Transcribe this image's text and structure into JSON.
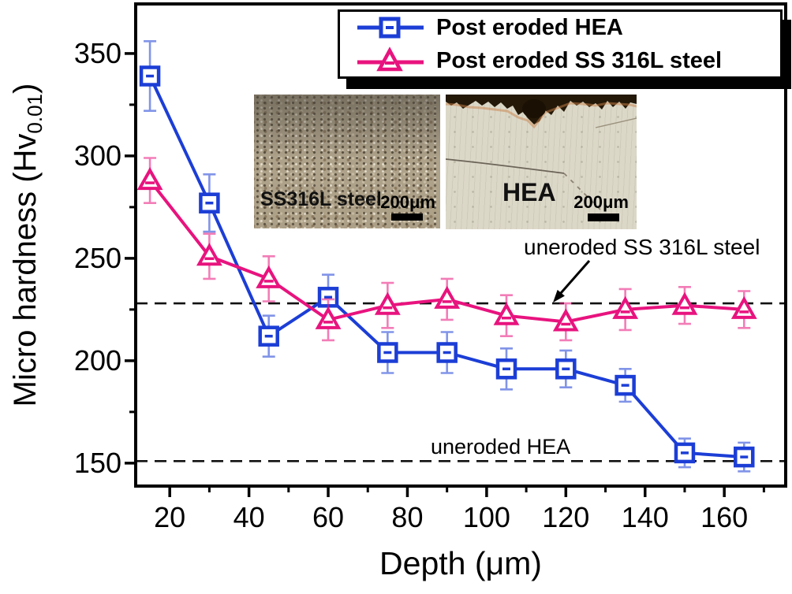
{
  "chart_data": {
    "type": "line",
    "title": "",
    "xlabel": "Depth (μm)",
    "ylabel": "Micro hardness (Hv0.01)",
    "ylabel_parts": {
      "main": "Micro hardness (Hv",
      "sub": "0.01",
      "close": ")"
    },
    "x": [
      15,
      30,
      45,
      60,
      75,
      90,
      105,
      120,
      135,
      150,
      165
    ],
    "series": [
      {
        "name": "Post eroded HEA",
        "color": "#1c3ed6",
        "marker": "square",
        "values": [
          339,
          277,
          212,
          231,
          204,
          204,
          196,
          196,
          188,
          155,
          153
        ],
        "errors": [
          17,
          14,
          10,
          11,
          10,
          10,
          10,
          9,
          8,
          7,
          7
        ]
      },
      {
        "name": "Post eroded SS 316L steel",
        "color": "#e8137e",
        "marker": "triangle",
        "values": [
          288,
          251,
          240,
          220,
          227,
          230,
          222,
          219,
          225,
          227,
          225
        ],
        "errors": [
          11,
          11,
          11,
          10,
          11,
          10,
          10,
          9,
          10,
          9,
          9
        ]
      }
    ],
    "reference_lines": [
      {
        "label": "uneroded SS 316L steel",
        "value": 228,
        "style": "dashed"
      },
      {
        "label": "uneroded HEA",
        "value": 151,
        "style": "dashed"
      }
    ],
    "x_ticks": [
      20,
      40,
      60,
      80,
      100,
      120,
      140,
      160
    ],
    "x_minor_ticks": [
      30,
      50,
      70,
      90,
      110,
      130,
      150,
      170
    ],
    "y_ticks": [
      150,
      200,
      250,
      300,
      350
    ],
    "y_minor_ticks": [
      175,
      225,
      275,
      325
    ],
    "xlim": [
      11.4,
      175.5
    ],
    "ylim": [
      138.8,
      374.2
    ],
    "grid": false,
    "legend_position": "top-right"
  },
  "insets": [
    {
      "label": "SS316L steel",
      "scale_label": "200μm"
    },
    {
      "label": "HEA",
      "scale_label": "200μm"
    }
  ]
}
